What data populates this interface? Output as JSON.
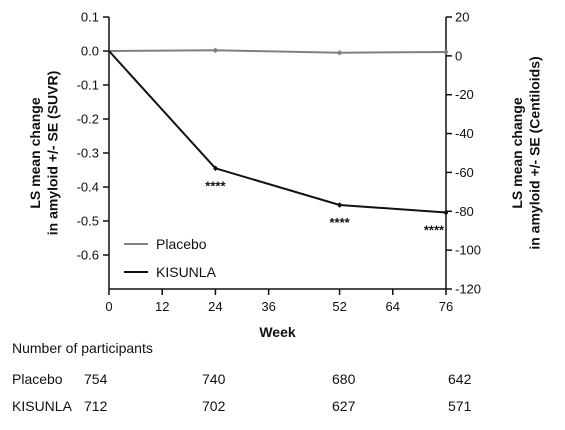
{
  "chart_data": {
    "type": "line",
    "x": [
      0,
      24,
      52,
      76
    ],
    "x_ticks": [
      "0",
      "12",
      "24",
      "36",
      "52",
      "64",
      "76"
    ],
    "x_tick_values": [
      0,
      12,
      24,
      36,
      52,
      64,
      76
    ],
    "xlabel": "Week",
    "xlim": [
      0,
      76
    ],
    "ylabel": "LS mean change in amyloid +/- SE (SUVR)",
    "ylim": [
      -0.7,
      0.1
    ],
    "y_ticks": [
      "0.1",
      "0.0",
      "-0.1",
      "-0.2",
      "-0.3",
      "-0.4",
      "-0.5",
      "-0.6"
    ],
    "y_tick_values": [
      0.1,
      0.0,
      -0.1,
      -0.2,
      -0.3,
      -0.4,
      -0.5,
      -0.6
    ],
    "y2label": "LS mean change in amyloid +/- SE (Centiloids)",
    "y2lim": [
      -120,
      20
    ],
    "y2_ticks": [
      "20",
      "0",
      "-20",
      "-40",
      "-60",
      "-80",
      "-100",
      "-120"
    ],
    "y2_tick_values": [
      20,
      0,
      -20,
      -40,
      -60,
      -80,
      -100,
      -120
    ],
    "grid": false,
    "legend_position": "lower-left",
    "series": [
      {
        "name": "Placebo",
        "color": "#808080",
        "values": [
          0.0,
          0.002,
          -0.005,
          -0.003
        ]
      },
      {
        "name": "KISUNLA",
        "color": "#111111",
        "values": [
          0.0,
          -0.345,
          -0.453,
          -0.475
        ]
      }
    ],
    "annotations": [
      {
        "text": "****",
        "x": 24
      },
      {
        "text": "****",
        "x": 52
      },
      {
        "text": "****",
        "x": 76
      }
    ]
  },
  "participants": {
    "title": "Number of participants",
    "rows": [
      {
        "label": "Placebo",
        "values": [
          "754",
          "740",
          "680",
          "642"
        ]
      },
      {
        "label": "KISUNLA",
        "values": [
          "712",
          "702",
          "627",
          "571"
        ]
      }
    ]
  }
}
